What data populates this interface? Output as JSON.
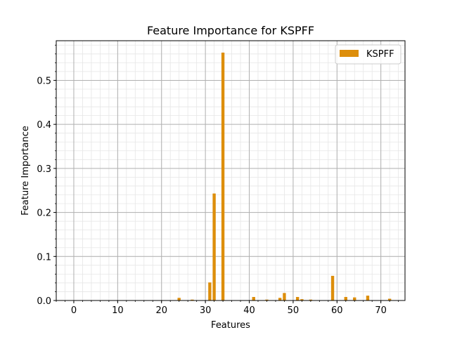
{
  "chart_data": {
    "type": "bar",
    "title": "Feature Importance for KSPFF",
    "xlabel": "Features",
    "ylabel": "Feature Importance",
    "xlim": [
      -4,
      75.5
    ],
    "ylim": [
      0,
      0.59
    ],
    "x_ticks": [
      0,
      10,
      20,
      30,
      40,
      50,
      60,
      70
    ],
    "y_ticks": [
      0.0,
      0.1,
      0.2,
      0.3,
      0.4,
      0.5
    ],
    "grid": true,
    "minor_grid": true,
    "legend_position": "top-right",
    "series": [
      {
        "name": "KSPFF",
        "color": "#dd8e0b",
        "x": [
          24,
          27,
          31,
          32,
          34,
          41,
          44,
          47,
          48,
          51,
          52,
          54,
          59,
          62,
          64,
          67,
          72
        ],
        "values": [
          0.006,
          0.002,
          0.041,
          0.243,
          0.563,
          0.008,
          0.002,
          0.006,
          0.017,
          0.008,
          0.003,
          0.002,
          0.056,
          0.008,
          0.007,
          0.011,
          0.004
        ]
      }
    ]
  }
}
